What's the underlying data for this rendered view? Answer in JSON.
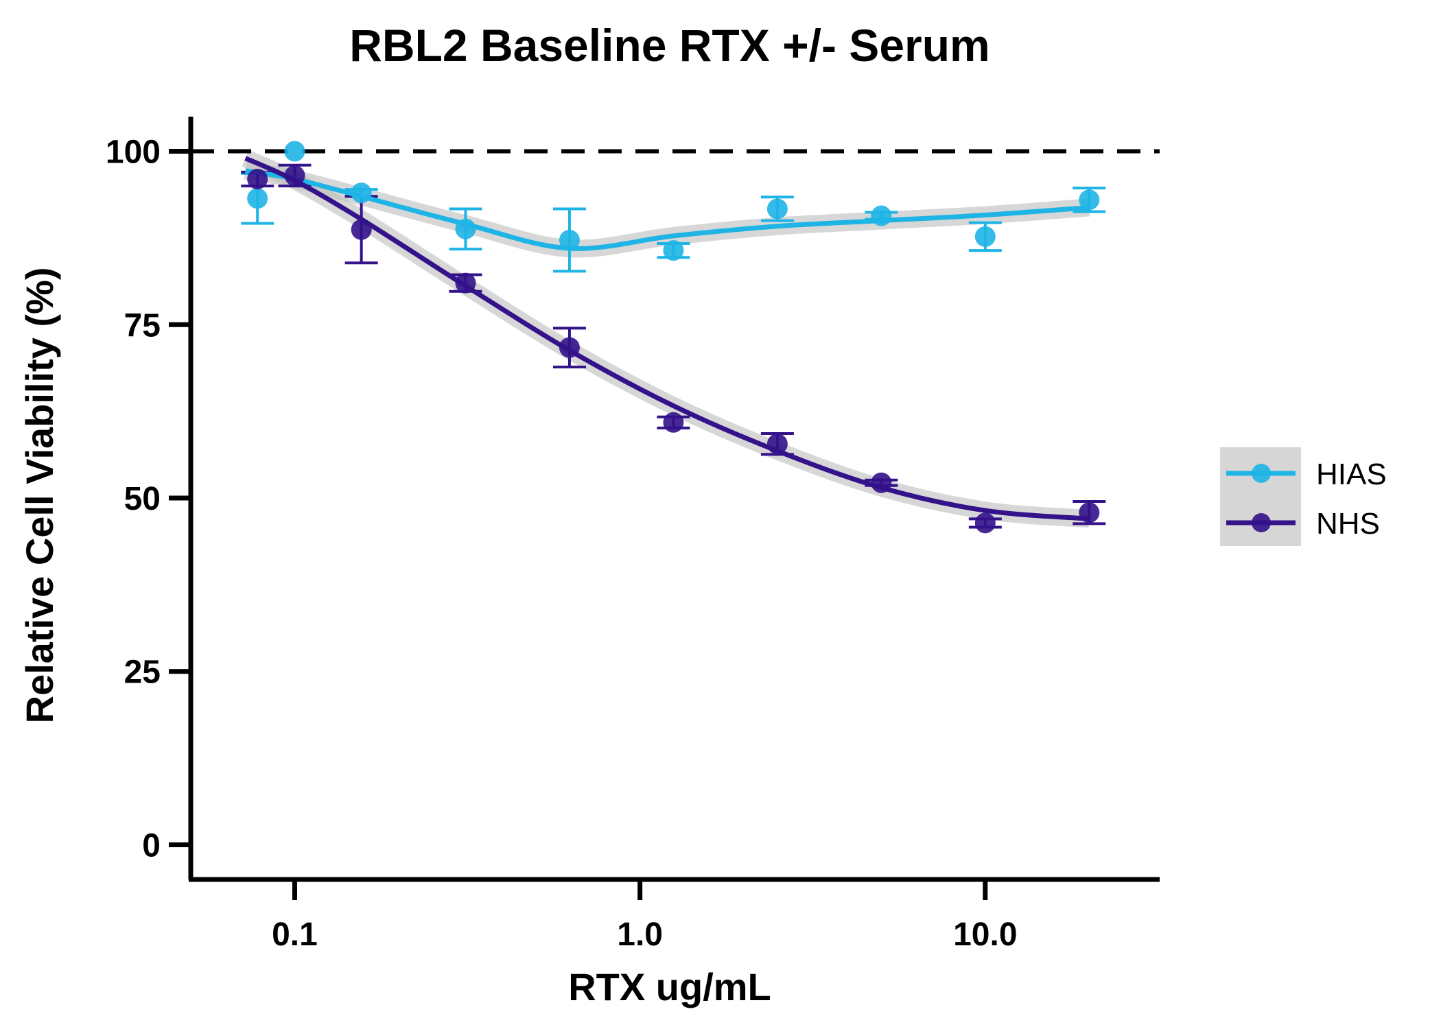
{
  "chart_data": {
    "type": "scatter",
    "title": "RBL2 Baseline RTX +/- Serum",
    "xlabel": "RTX ug/mL",
    "ylabel": "Relative Cell Viability (%)",
    "xscale": "log",
    "xlim": [
      0.05,
      32
    ],
    "ylim": [
      -5,
      105
    ],
    "xticks": [
      0.1,
      1.0,
      10.0
    ],
    "xtick_labels": [
      "0.1",
      "1.0",
      "10.0"
    ],
    "yticks": [
      0,
      25,
      50,
      75,
      100
    ],
    "ytick_labels": [
      "0",
      "25",
      "50",
      "75",
      "100"
    ],
    "reference_line": {
      "y": 100,
      "style": "dashed",
      "color": "#000000"
    },
    "grid": false,
    "legend_position": "right",
    "series": [
      {
        "name": "HIAS",
        "color": "#1EB4E6",
        "x": [
          0.078,
          0.1,
          0.156,
          0.3125,
          0.625,
          1.25,
          2.5,
          5.0,
          10.0,
          20.0
        ],
        "y": [
          93.2,
          100.0,
          94.0,
          88.8,
          87.2,
          85.7,
          91.7,
          90.7,
          87.7,
          93.0
        ],
        "err": [
          3.6,
          0,
          0.5,
          2.9,
          4.5,
          1.0,
          1.7,
          0.5,
          2.0,
          1.7
        ],
        "fit": [
          [
            0.072,
            97.2
          ],
          [
            0.1,
            96.0
          ],
          [
            0.156,
            93.5
          ],
          [
            0.3125,
            89.5
          ],
          [
            0.625,
            86.0
          ],
          [
            1.25,
            87.8
          ],
          [
            2.5,
            89.2
          ],
          [
            5.0,
            90.0
          ],
          [
            10.0,
            90.8
          ],
          [
            20.0,
            91.9
          ]
        ]
      },
      {
        "name": "NHS",
        "color": "#33128A",
        "x": [
          0.078,
          0.1,
          0.156,
          0.3125,
          0.625,
          1.25,
          2.5,
          5.0,
          10.0,
          20.0
        ],
        "y": [
          96.0,
          96.5,
          88.7,
          81.0,
          71.7,
          60.9,
          57.8,
          52.2,
          46.4,
          47.9
        ],
        "err": [
          1.0,
          1.5,
          4.8,
          1.2,
          2.8,
          0.8,
          1.5,
          0.4,
          0.6,
          1.6
        ],
        "fit": [
          [
            0.072,
            99.0
          ],
          [
            0.1,
            95.8
          ],
          [
            0.156,
            90.2
          ],
          [
            0.3125,
            80.6
          ],
          [
            0.625,
            71.3
          ],
          [
            1.25,
            63.3
          ],
          [
            2.5,
            56.8
          ],
          [
            5.0,
            51.5
          ],
          [
            10.0,
            48.2
          ],
          [
            20.0,
            47.0
          ]
        ]
      }
    ]
  }
}
